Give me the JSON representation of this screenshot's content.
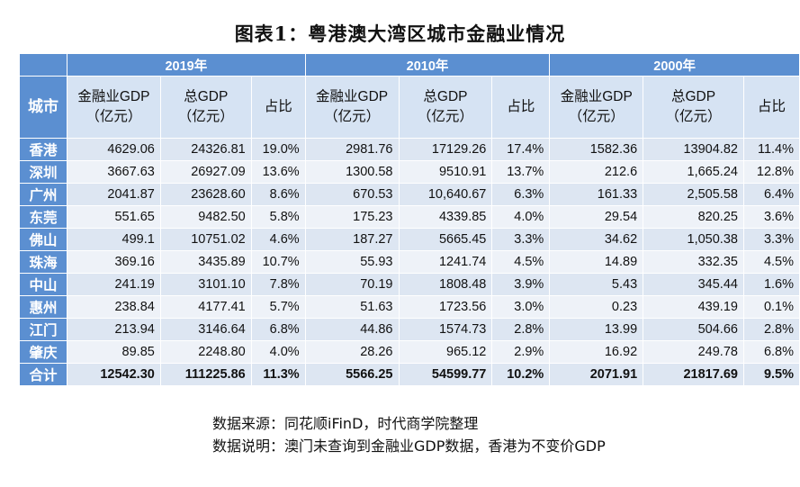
{
  "title": "图表1：粤港澳大湾区城市金融业情况",
  "years": [
    "2019年",
    "2010年",
    "2000年"
  ],
  "headers": {
    "city": "城市",
    "cols": [
      "金融业GDP\n（亿元）",
      "总GDP\n（亿元）",
      "占比"
    ]
  },
  "rows": [
    {
      "city": "香港",
      "cells": [
        "4629.06",
        "24326.81",
        "19.0%",
        "2981.76",
        "17129.26",
        "17.4%",
        "1582.36",
        "13904.82",
        "11.4%"
      ]
    },
    {
      "city": "深圳",
      "cells": [
        "3667.63",
        "26927.09",
        "13.6%",
        "1300.58",
        "9510.91",
        "13.7%",
        "212.6",
        "1,665.24",
        "12.8%"
      ]
    },
    {
      "city": "广州",
      "cells": [
        "2041.87",
        "23628.60",
        "8.6%",
        "670.53",
        "10,640.67",
        "6.3%",
        "161.33",
        "2,505.58",
        "6.4%"
      ]
    },
    {
      "city": "东莞",
      "cells": [
        "551.65",
        "9482.50",
        "5.8%",
        "175.23",
        "4339.85",
        "4.0%",
        "29.54",
        "820.25",
        "3.6%"
      ]
    },
    {
      "city": "佛山",
      "cells": [
        "499.1",
        "10751.02",
        "4.6%",
        "187.27",
        "5665.45",
        "3.3%",
        "34.62",
        "1,050.38",
        "3.3%"
      ]
    },
    {
      "city": "珠海",
      "cells": [
        "369.16",
        "3435.89",
        "10.7%",
        "55.93",
        "1241.74",
        "4.5%",
        "14.89",
        "332.35",
        "4.5%"
      ]
    },
    {
      "city": "中山",
      "cells": [
        "241.19",
        "3101.10",
        "7.8%",
        "70.19",
        "1808.48",
        "3.9%",
        "5.43",
        "345.44",
        "1.6%"
      ]
    },
    {
      "city": "惠州",
      "cells": [
        "238.84",
        "4177.41",
        "5.7%",
        "51.63",
        "1723.56",
        "3.0%",
        "0.23",
        "439.19",
        "0.1%"
      ]
    },
    {
      "city": "江门",
      "cells": [
        "213.94",
        "3146.64",
        "6.8%",
        "44.86",
        "1574.73",
        "2.8%",
        "13.99",
        "504.66",
        "2.8%"
      ]
    },
    {
      "city": "肇庆",
      "cells": [
        "89.85",
        "2248.80",
        "4.0%",
        "28.26",
        "965.12",
        "2.9%",
        "16.92",
        "249.78",
        "6.8%"
      ]
    },
    {
      "city": "合计",
      "cells": [
        "12542.30",
        "111225.86",
        "11.3%",
        "5566.25",
        "54599.77",
        "10.2%",
        "2071.91",
        "21817.69",
        "9.5%"
      ]
    }
  ],
  "notes": {
    "source": "数据来源：同花顺iFinD，时代商学院整理",
    "explain": "数据说明：澳门未查询到金融业GDP数据，香港为不变价GDP"
  }
}
